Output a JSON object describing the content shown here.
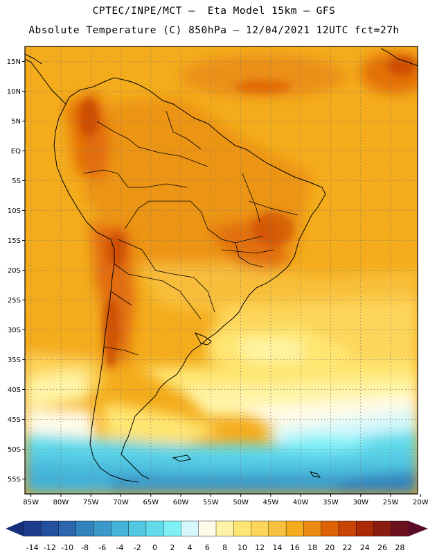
{
  "header": {
    "line1": "CPTEC/INPE/MCT –  Eta Model 15km – GFS",
    "line2": "Absolute Temperature (C) 850hPa – 12/04/2021 12UTC fct=27h"
  },
  "map": {
    "lat_labels": [
      "15N",
      "10N",
      "5N",
      "EQ",
      "5S",
      "10S",
      "15S",
      "20S",
      "25S",
      "30S",
      "35S",
      "40S",
      "45S",
      "50S",
      "55S"
    ],
    "lat_values": [
      15,
      10,
      5,
      0,
      -5,
      -10,
      -15,
      -20,
      -25,
      -30,
      -35,
      -40,
      -45,
      -50,
      -55
    ],
    "lon_labels": [
      "85W",
      "80W",
      "75W",
      "70W",
      "65W",
      "60W",
      "55W",
      "50W",
      "45W",
      "40W",
      "35W",
      "30W",
      "25W",
      "20W"
    ],
    "lon_values": [
      -85,
      -80,
      -75,
      -70,
      -65,
      -60,
      -55,
      -50,
      -45,
      -40,
      -35,
      -30,
      -25,
      -20
    ],
    "extent": {
      "lon": [
        -86,
        -20.5
      ],
      "lat": [
        -57.5,
        17.5
      ]
    }
  },
  "colorbar": {
    "labels": [
      "-14",
      "-12",
      "-10",
      "-8",
      "-6",
      "-4",
      "-2",
      "0",
      "2",
      "4",
      "6",
      "8",
      "10",
      "12",
      "14",
      "16",
      "18",
      "20",
      "22",
      "24",
      "26",
      "28"
    ],
    "colors": [
      "#1e3d8f",
      "#24519f",
      "#2b66ae",
      "#3282bd",
      "#3a99c8",
      "#45b2d8",
      "#52c8e2",
      "#62dcec",
      "#7ff0f6",
      "#d6f8fc",
      "#fffbe8",
      "#fff4a6",
      "#ffe672",
      "#fdd55a",
      "#f8c23e",
      "#f4ac1c",
      "#ea8c14",
      "#de6208",
      "#c94304",
      "#ab2a04",
      "#8a1c10",
      "#6a101e"
    ],
    "left_arrow_color": "#142e7a",
    "right_arrow_color": "#5a0b28"
  }
}
